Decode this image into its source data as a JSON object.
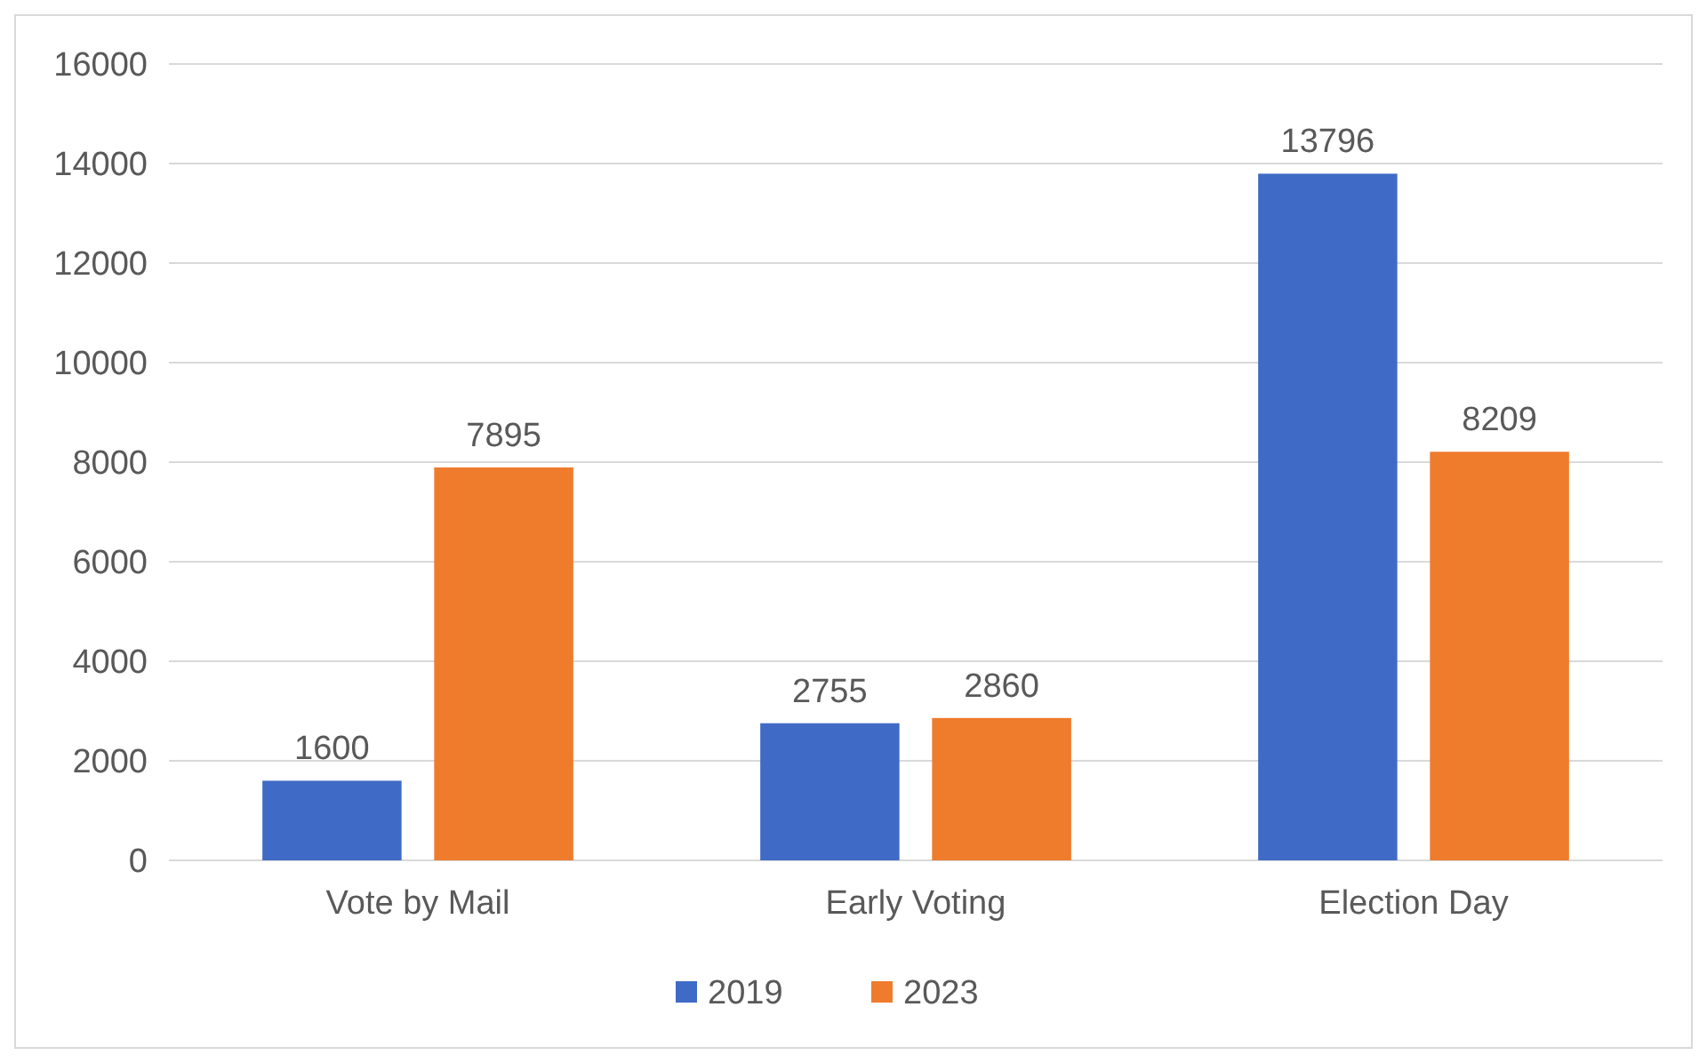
{
  "chart_data": {
    "type": "bar",
    "categories": [
      "Vote by Mail",
      "Early Voting",
      "Election Day"
    ],
    "series": [
      {
        "name": "2019",
        "color": "#3f6bc6",
        "values": [
          1600,
          2755,
          13796
        ]
      },
      {
        "name": "2023",
        "color": "#ef7b2d",
        "values": [
          7895,
          2860,
          8209
        ]
      }
    ],
    "ylim": [
      0,
      16000
    ],
    "yticks": [
      0,
      2000,
      4000,
      6000,
      8000,
      10000,
      12000,
      14000,
      16000
    ],
    "grid": "y",
    "legend": "bottom",
    "data_labels": true
  }
}
